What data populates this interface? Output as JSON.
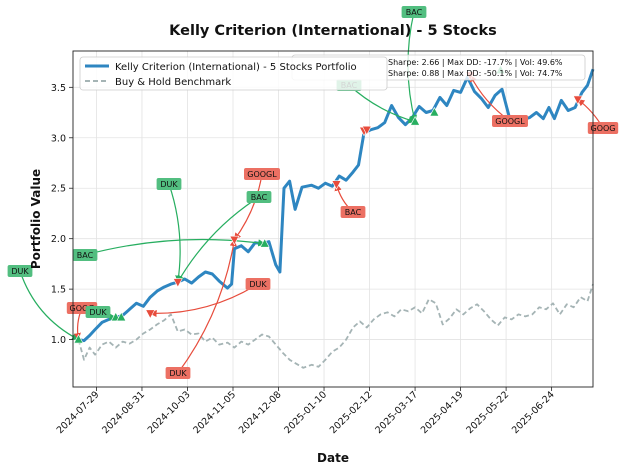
{
  "chart_data": {
    "type": "line",
    "title": "Kelly Criterion (International) - 5 Stocks",
    "xlabel": "Date",
    "ylabel": "Portfolio Value",
    "ylim": [
      0.53,
      3.86
    ],
    "yticks": [
      1.0,
      1.5,
      2.0,
      2.5,
      3.0,
      3.5
    ],
    "ytick_labels": [
      "1.0",
      "1.5",
      "2.0",
      "2.5",
      "3.0",
      "3.5"
    ],
    "xlim": [
      "2024-07-12",
      "2025-07-24"
    ],
    "xticks": [
      "2024-07-29",
      "2024-08-31",
      "2024-10-03",
      "2024-11-05",
      "2024-12-08",
      "2025-01-10",
      "2025-02-12",
      "2025-03-17",
      "2025-04-19",
      "2025-05-22",
      "2025-06-24"
    ],
    "grid": true,
    "legend_position": "top-left",
    "series": [
      {
        "name": "Kelly Criterion (International) - 5 Stocks Portfolio",
        "color": "#2e86c1",
        "style": "solid",
        "metrics": "Sharpe: 2.66 | Max DD: -17.7% | Vol: 49.6%",
        "points": [
          [
            "2024-07-16",
            1.0
          ],
          [
            "2024-07-20",
            0.99
          ],
          [
            "2024-07-24",
            1.04
          ],
          [
            "2024-07-28",
            1.1
          ],
          [
            "2024-08-02",
            1.17
          ],
          [
            "2024-08-07",
            1.2
          ],
          [
            "2024-08-12",
            1.22
          ],
          [
            "2024-08-17",
            1.24
          ],
          [
            "2024-08-22",
            1.3
          ],
          [
            "2024-08-27",
            1.36
          ],
          [
            "2024-09-01",
            1.33
          ],
          [
            "2024-09-06",
            1.42
          ],
          [
            "2024-09-11",
            1.48
          ],
          [
            "2024-09-16",
            1.52
          ],
          [
            "2024-09-21",
            1.55
          ],
          [
            "2024-09-26",
            1.57
          ],
          [
            "2024-10-01",
            1.6
          ],
          [
            "2024-10-06",
            1.56
          ],
          [
            "2024-10-11",
            1.62
          ],
          [
            "2024-10-16",
            1.67
          ],
          [
            "2024-10-21",
            1.65
          ],
          [
            "2024-10-26",
            1.58
          ],
          [
            "2024-11-01",
            1.51
          ],
          [
            "2024-11-04",
            1.55
          ],
          [
            "2024-11-06",
            1.9
          ],
          [
            "2024-11-11",
            1.93
          ],
          [
            "2024-11-16",
            1.87
          ],
          [
            "2024-11-21",
            1.96
          ],
          [
            "2024-11-26",
            1.95
          ],
          [
            "2024-12-01",
            1.97
          ],
          [
            "2024-12-06",
            1.74
          ],
          [
            "2024-12-09",
            1.67
          ],
          [
            "2024-12-12",
            2.5
          ],
          [
            "2024-12-16",
            2.57
          ],
          [
            "2024-12-20",
            2.29
          ],
          [
            "2024-12-25",
            2.51
          ],
          [
            "2025-01-01",
            2.53
          ],
          [
            "2025-01-06",
            2.5
          ],
          [
            "2025-01-11",
            2.55
          ],
          [
            "2025-01-16",
            2.52
          ],
          [
            "2025-01-21",
            2.62
          ],
          [
            "2025-01-26",
            2.58
          ],
          [
            "2025-01-31",
            2.66
          ],
          [
            "2025-02-04",
            2.73
          ],
          [
            "2025-02-08",
            3.05
          ],
          [
            "2025-02-13",
            3.08
          ],
          [
            "2025-02-18",
            3.1
          ],
          [
            "2025-02-23",
            3.15
          ],
          [
            "2025-02-28",
            3.32
          ],
          [
            "2025-03-05",
            3.2
          ],
          [
            "2025-03-10",
            3.13
          ],
          [
            "2025-03-15",
            3.2
          ],
          [
            "2025-03-20",
            3.31
          ],
          [
            "2025-03-25",
            3.25
          ],
          [
            "2025-03-30",
            3.27
          ],
          [
            "2025-04-04",
            3.4
          ],
          [
            "2025-04-09",
            3.32
          ],
          [
            "2025-04-14",
            3.47
          ],
          [
            "2025-04-19",
            3.45
          ],
          [
            "2025-04-24",
            3.6
          ],
          [
            "2025-04-29",
            3.46
          ],
          [
            "2025-05-04",
            3.39
          ],
          [
            "2025-05-09",
            3.3
          ],
          [
            "2025-05-14",
            3.42
          ],
          [
            "2025-05-19",
            3.48
          ],
          [
            "2025-05-24",
            3.22
          ],
          [
            "2025-05-29",
            3.15
          ],
          [
            "2025-06-03",
            3.18
          ],
          [
            "2025-06-08",
            3.2
          ],
          [
            "2025-06-13",
            3.25
          ],
          [
            "2025-06-18",
            3.19
          ],
          [
            "2025-06-22",
            3.3
          ],
          [
            "2025-06-26",
            3.19
          ],
          [
            "2025-07-01",
            3.37
          ],
          [
            "2025-07-06",
            3.27
          ],
          [
            "2025-07-11",
            3.3
          ],
          [
            "2025-07-16",
            3.45
          ],
          [
            "2025-07-20",
            3.52
          ],
          [
            "2025-07-24",
            3.68
          ]
        ]
      },
      {
        "name": "Buy & Hold Benchmark",
        "color": "#a5b4b5",
        "style": "dashed",
        "metrics": "Sharpe: 0.88 | Max DD: -50.1% | Vol: 74.7%",
        "points": [
          [
            "2024-07-16",
            1.0
          ],
          [
            "2024-07-20",
            0.8
          ],
          [
            "2024-07-24",
            0.92
          ],
          [
            "2024-07-28",
            0.85
          ],
          [
            "2024-08-02",
            0.95
          ],
          [
            "2024-08-07",
            0.98
          ],
          [
            "2024-08-12",
            0.92
          ],
          [
            "2024-08-17",
            0.98
          ],
          [
            "2024-08-22",
            0.96
          ],
          [
            "2024-08-27",
            1.0
          ],
          [
            "2024-09-01",
            1.06
          ],
          [
            "2024-09-06",
            1.1
          ],
          [
            "2024-09-11",
            1.15
          ],
          [
            "2024-09-16",
            1.19
          ],
          [
            "2024-09-21",
            1.25
          ],
          [
            "2024-09-26",
            1.08
          ],
          [
            "2024-10-01",
            1.1
          ],
          [
            "2024-10-06",
            1.05
          ],
          [
            "2024-10-11",
            1.06
          ],
          [
            "2024-10-16",
            0.98
          ],
          [
            "2024-10-21",
            1.02
          ],
          [
            "2024-10-26",
            0.95
          ],
          [
            "2024-11-01",
            0.97
          ],
          [
            "2024-11-06",
            0.92
          ],
          [
            "2024-11-11",
            0.98
          ],
          [
            "2024-11-16",
            0.95
          ],
          [
            "2024-11-21",
            1.0
          ],
          [
            "2024-11-26",
            1.05
          ],
          [
            "2024-12-01",
            1.03
          ],
          [
            "2024-12-06",
            0.95
          ],
          [
            "2024-12-11",
            0.87
          ],
          [
            "2024-12-16",
            0.8
          ],
          [
            "2024-12-21",
            0.76
          ],
          [
            "2024-12-26",
            0.72
          ],
          [
            "2025-01-01",
            0.75
          ],
          [
            "2025-01-06",
            0.73
          ],
          [
            "2025-01-11",
            0.8
          ],
          [
            "2025-01-16",
            0.88
          ],
          [
            "2025-01-21",
            0.92
          ],
          [
            "2025-01-26",
            1.0
          ],
          [
            "2025-01-31",
            1.12
          ],
          [
            "2025-02-05",
            1.18
          ],
          [
            "2025-02-10",
            1.12
          ],
          [
            "2025-02-15",
            1.2
          ],
          [
            "2025-02-20",
            1.25
          ],
          [
            "2025-02-25",
            1.27
          ],
          [
            "2025-03-02",
            1.23
          ],
          [
            "2025-03-07",
            1.3
          ],
          [
            "2025-03-12",
            1.28
          ],
          [
            "2025-03-17",
            1.32
          ],
          [
            "2025-03-22",
            1.26
          ],
          [
            "2025-03-27",
            1.4
          ],
          [
            "2025-04-01",
            1.36
          ],
          [
            "2025-04-06",
            1.15
          ],
          [
            "2025-04-11",
            1.21
          ],
          [
            "2025-04-16",
            1.3
          ],
          [
            "2025-04-21",
            1.25
          ],
          [
            "2025-04-26",
            1.31
          ],
          [
            "2025-05-01",
            1.35
          ],
          [
            "2025-05-06",
            1.28
          ],
          [
            "2025-05-11",
            1.2
          ],
          [
            "2025-05-16",
            1.14
          ],
          [
            "2025-05-21",
            1.22
          ],
          [
            "2025-05-26",
            1.2
          ],
          [
            "2025-05-31",
            1.25
          ],
          [
            "2025-06-05",
            1.23
          ],
          [
            "2025-06-10",
            1.25
          ],
          [
            "2025-06-15",
            1.32
          ],
          [
            "2025-06-20",
            1.3
          ],
          [
            "2025-06-25",
            1.36
          ],
          [
            "2025-06-30",
            1.25
          ],
          [
            "2025-07-05",
            1.35
          ],
          [
            "2025-07-10",
            1.32
          ],
          [
            "2025-07-15",
            1.42
          ],
          [
            "2025-07-20",
            1.38
          ],
          [
            "2025-07-24",
            1.55
          ]
        ]
      }
    ],
    "trade_markers": [
      {
        "type": "buy",
        "date": "2024-07-16",
        "value": 1.0
      },
      {
        "type": "buy",
        "date": "2024-08-12",
        "value": 1.22
      },
      {
        "type": "buy",
        "date": "2024-08-16",
        "value": 1.22
      },
      {
        "type": "sell",
        "date": "2024-09-06",
        "value": 1.26
      },
      {
        "type": "sell",
        "date": "2024-09-26",
        "value": 1.57
      },
      {
        "type": "sell",
        "date": "2024-11-06",
        "value": 1.99
      },
      {
        "type": "buy",
        "date": "2024-11-28",
        "value": 1.95
      },
      {
        "type": "sell",
        "date": "2025-01-19",
        "value": 2.54
      },
      {
        "type": "sell",
        "date": "2025-02-08",
        "value": 3.07
      },
      {
        "type": "sell",
        "date": "2025-02-10",
        "value": 3.08
      },
      {
        "type": "buy",
        "date": "2025-03-17",
        "value": 3.16
      },
      {
        "type": "buy",
        "date": "2025-03-31",
        "value": 3.25
      },
      {
        "type": "sell",
        "date": "2025-04-26",
        "value": 3.62
      },
      {
        "type": "buy",
        "date": "2025-05-18",
        "value": 3.67
      },
      {
        "type": "sell",
        "date": "2025-07-13",
        "value": 3.38
      }
    ],
    "annotations": [
      {
        "label": "DUK",
        "type": "buy",
        "target": 0
      },
      {
        "label": "GOOG",
        "type": "sell",
        "target": 0
      },
      {
        "label": "DUK",
        "type": "buy",
        "target": 1
      },
      {
        "label": "BAC",
        "type": "buy",
        "target": 4
      },
      {
        "label": "DUK",
        "type": "buy",
        "target": 4
      },
      {
        "label": "DUK",
        "type": "sell",
        "target": 3
      },
      {
        "label": "GOOGL",
        "type": "sell",
        "target": 5
      },
      {
        "label": "BAC",
        "type": "buy",
        "target": 6
      },
      {
        "label": "DUK",
        "type": "sell",
        "target": 5
      },
      {
        "label": "BAC",
        "type": "sell",
        "target": 7
      },
      {
        "label": "BAC",
        "type": "buy",
        "target": 10
      },
      {
        "label": "BAC",
        "type": "buy",
        "target": 10
      },
      {
        "label": "GOOGL",
        "type": "sell",
        "target": 12
      },
      {
        "label": "GOOG",
        "type": "sell",
        "target": 14
      }
    ]
  }
}
